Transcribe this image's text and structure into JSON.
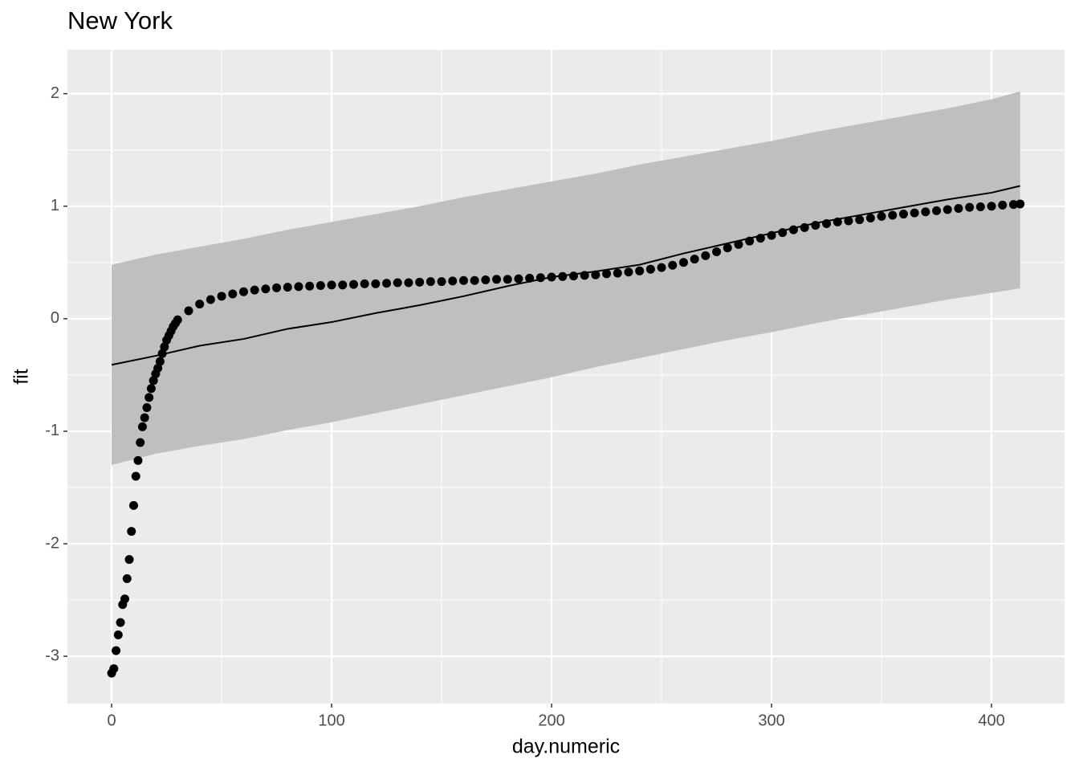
{
  "chart_data": {
    "type": "scatter",
    "title": "New York",
    "x_label": "day.numeric",
    "y_label": "fit",
    "xlim": [
      -20.1,
      433.2
    ],
    "ylim": [
      -3.42,
      2.39
    ],
    "xticks": [
      0,
      100,
      200,
      300,
      400
    ],
    "yticks": [
      -3,
      -2,
      -1,
      0,
      1,
      2
    ],
    "x_minor_ticks": [
      50,
      150,
      250,
      350
    ],
    "y_minor_ticks": [
      -2.5,
      -1.5,
      -0.5,
      0.5,
      1.5
    ],
    "grid": true,
    "point_color": "#000000",
    "line_color": "#000000",
    "ribbon_color": "#bfbfbf",
    "points": {
      "x": [
        0,
        1,
        2,
        3,
        4,
        5,
        6,
        7,
        8,
        9,
        10,
        11,
        12,
        13,
        14,
        15,
        16,
        17,
        18,
        19,
        20,
        21,
        22,
        23,
        24,
        25,
        26,
        27,
        28,
        29,
        30,
        35,
        40,
        45,
        50,
        55,
        60,
        65,
        70,
        75,
        80,
        85,
        90,
        95,
        100,
        105,
        110,
        115,
        120,
        125,
        130,
        135,
        140,
        145,
        150,
        155,
        160,
        165,
        170,
        175,
        180,
        185,
        190,
        195,
        200,
        205,
        210,
        215,
        220,
        225,
        230,
        235,
        240,
        245,
        250,
        255,
        260,
        265,
        270,
        275,
        280,
        285,
        290,
        295,
        300,
        305,
        310,
        315,
        320,
        325,
        330,
        335,
        340,
        345,
        350,
        355,
        360,
        365,
        370,
        375,
        380,
        385,
        390,
        395,
        400,
        405,
        410,
        413
      ],
      "values": [
        -3.15,
        -3.11,
        -2.95,
        -2.81,
        -2.7,
        -2.54,
        -2.49,
        -2.31,
        -2.14,
        -1.89,
        -1.66,
        -1.4,
        -1.26,
        -1.1,
        -0.96,
        -0.88,
        -0.79,
        -0.7,
        -0.62,
        -0.55,
        -0.49,
        -0.44,
        -0.38,
        -0.31,
        -0.25,
        -0.19,
        -0.15,
        -0.11,
        -0.07,
        -0.04,
        -0.01,
        0.07,
        0.13,
        0.17,
        0.2,
        0.22,
        0.24,
        0.255,
        0.265,
        0.275,
        0.28,
        0.285,
        0.29,
        0.295,
        0.3,
        0.3,
        0.305,
        0.31,
        0.31,
        0.315,
        0.32,
        0.32,
        0.325,
        0.33,
        0.33,
        0.335,
        0.34,
        0.34,
        0.345,
        0.35,
        0.35,
        0.355,
        0.36,
        0.365,
        0.37,
        0.375,
        0.38,
        0.385,
        0.39,
        0.4,
        0.405,
        0.415,
        0.425,
        0.44,
        0.455,
        0.475,
        0.5,
        0.53,
        0.56,
        0.595,
        0.63,
        0.66,
        0.69,
        0.715,
        0.74,
        0.765,
        0.79,
        0.81,
        0.83,
        0.845,
        0.86,
        0.87,
        0.88,
        0.895,
        0.91,
        0.92,
        0.93,
        0.94,
        0.95,
        0.96,
        0.97,
        0.98,
        0.99,
        0.995,
        1.0,
        1.01,
        1.015,
        1.02
      ]
    },
    "line": {
      "x": [
        0,
        20,
        40,
        60,
        80,
        100,
        120,
        140,
        160,
        180,
        200,
        220,
        240,
        260,
        280,
        300,
        320,
        340,
        360,
        380,
        400,
        413
      ],
      "values": [
        -0.41,
        -0.33,
        -0.24,
        -0.18,
        -0.09,
        -0.03,
        0.05,
        0.12,
        0.2,
        0.29,
        0.37,
        0.42,
        0.48,
        0.58,
        0.67,
        0.76,
        0.85,
        0.92,
        0.99,
        1.06,
        1.12,
        1.18
      ]
    },
    "ribbon": {
      "x": [
        0,
        20,
        40,
        60,
        80,
        100,
        120,
        140,
        160,
        180,
        200,
        220,
        240,
        260,
        280,
        300,
        320,
        340,
        360,
        380,
        400,
        413
      ],
      "lower": [
        -1.3,
        -1.2,
        -1.13,
        -1.07,
        -0.99,
        -0.92,
        -0.84,
        -0.76,
        -0.68,
        -0.6,
        -0.52,
        -0.43,
        -0.35,
        -0.27,
        -0.19,
        -0.12,
        -0.04,
        0.03,
        0.1,
        0.17,
        0.23,
        0.27
      ],
      "upper": [
        0.48,
        0.57,
        0.64,
        0.71,
        0.79,
        0.86,
        0.93,
        1.0,
        1.08,
        1.15,
        1.22,
        1.29,
        1.37,
        1.44,
        1.51,
        1.58,
        1.66,
        1.73,
        1.8,
        1.87,
        1.95,
        2.02
      ]
    }
  }
}
